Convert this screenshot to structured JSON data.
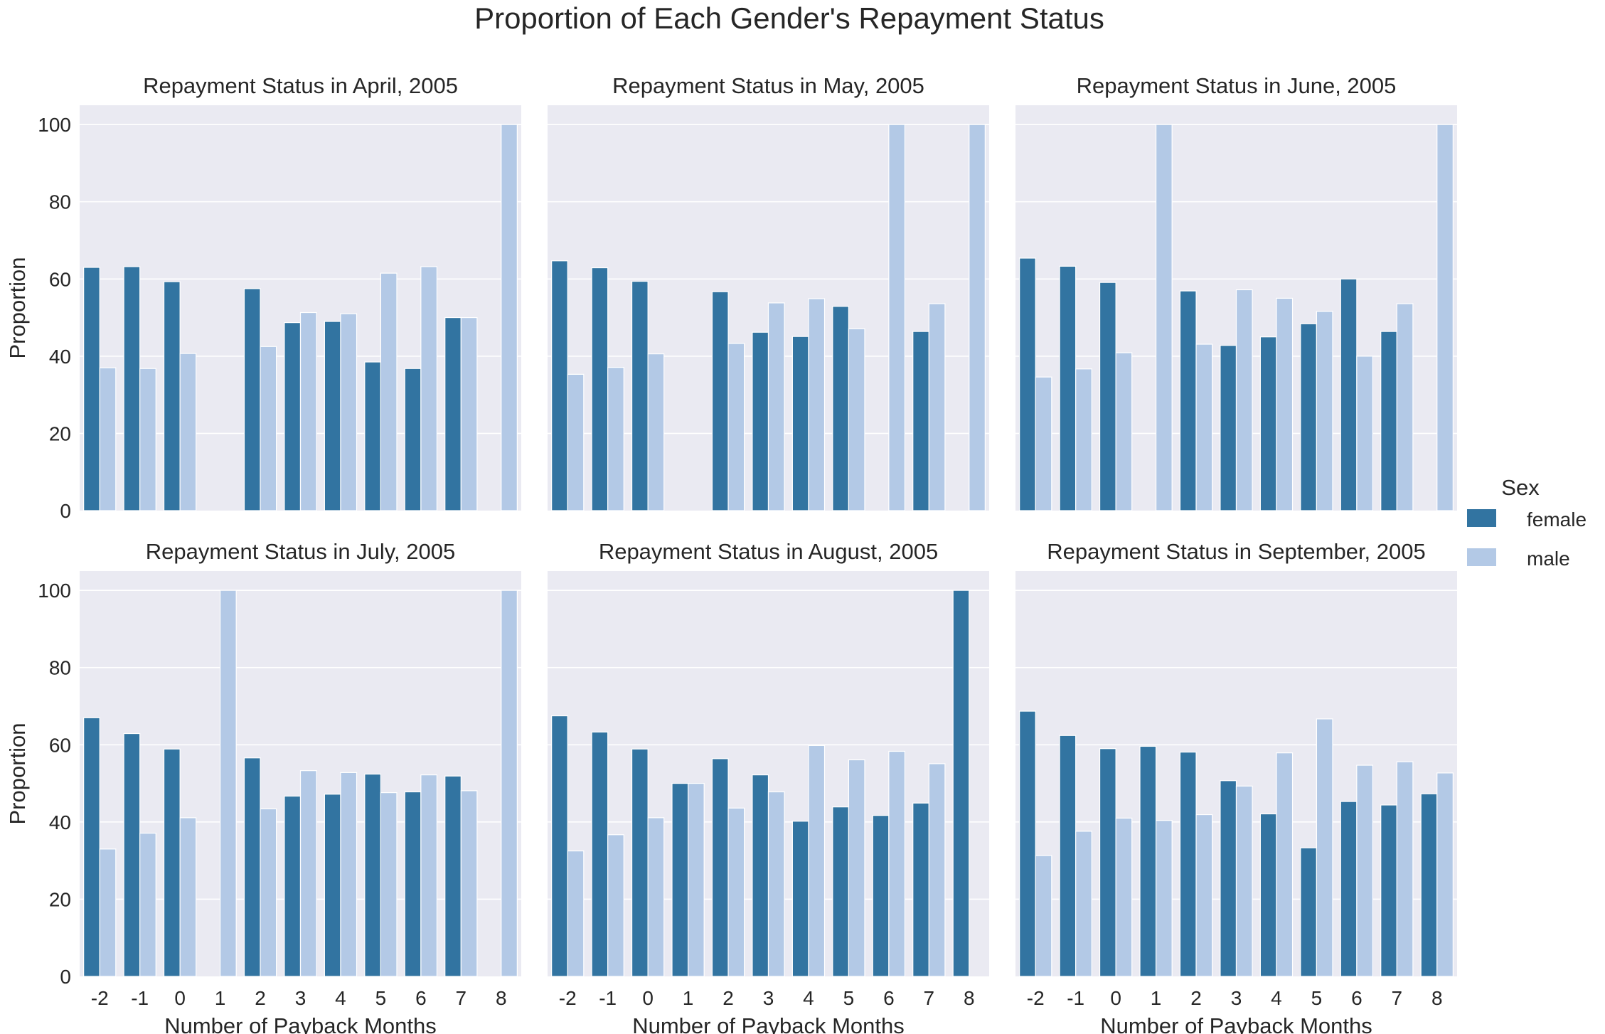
{
  "title": "Proportion of Each Gender's Repayment Status",
  "legend": {
    "title": "Sex",
    "placement": "right",
    "entries": [
      {
        "label": "female",
        "color": "#3274a1"
      },
      {
        "label": "male",
        "color": "#b3c9e6"
      }
    ]
  },
  "style": {
    "panel_background": "#eaeaf2",
    "grid_color": "#ffffff"
  },
  "chart_data": [
    {
      "type": "bar",
      "title": "Repayment Status in April, 2005",
      "xlabel": "",
      "ylabel": "Proportion",
      "ylim": [
        0,
        105
      ],
      "yticks": [
        0,
        20,
        40,
        60,
        80,
        100
      ],
      "grid": true,
      "categories": [
        "-2",
        "-1",
        "0",
        "1",
        "2",
        "3",
        "4",
        "5",
        "6",
        "7",
        "8"
      ],
      "series": [
        {
          "name": "female",
          "values": [
            63.0,
            63.2,
            59.3,
            null,
            57.5,
            48.7,
            49.0,
            38.5,
            36.8,
            50.0,
            null
          ]
        },
        {
          "name": "male",
          "values": [
            37.0,
            36.8,
            40.7,
            null,
            42.5,
            51.3,
            51.0,
            61.5,
            63.2,
            50.0,
            100.0
          ]
        }
      ]
    },
    {
      "type": "bar",
      "title": "Repayment Status in May, 2005",
      "xlabel": "",
      "ylabel": "",
      "ylim": [
        0,
        105
      ],
      "yticks": [
        0,
        20,
        40,
        60,
        80,
        100
      ],
      "grid": true,
      "categories": [
        "-2",
        "-1",
        "0",
        "1",
        "2",
        "3",
        "4",
        "5",
        "6",
        "7",
        "8"
      ],
      "series": [
        {
          "name": "female",
          "values": [
            64.7,
            62.9,
            59.4,
            null,
            56.7,
            46.2,
            45.1,
            52.9,
            null,
            46.4,
            null
          ]
        },
        {
          "name": "male",
          "values": [
            35.3,
            37.1,
            40.6,
            null,
            43.3,
            53.8,
            54.9,
            47.1,
            100.0,
            53.6,
            100.0
          ]
        }
      ]
    },
    {
      "type": "bar",
      "title": "Repayment Status in June, 2005",
      "xlabel": "",
      "ylabel": "",
      "ylim": [
        0,
        105
      ],
      "yticks": [
        0,
        20,
        40,
        60,
        80,
        100
      ],
      "grid": true,
      "categories": [
        "-2",
        "-1",
        "0",
        "1",
        "2",
        "3",
        "4",
        "5",
        "6",
        "7",
        "8"
      ],
      "series": [
        {
          "name": "female",
          "values": [
            65.4,
            63.3,
            59.1,
            null,
            56.9,
            42.8,
            45.0,
            48.4,
            60.0,
            46.4,
            null
          ]
        },
        {
          "name": "male",
          "values": [
            34.6,
            36.7,
            40.9,
            100.0,
            43.1,
            57.2,
            55.0,
            51.6,
            40.0,
            53.6,
            100.0
          ]
        }
      ]
    },
    {
      "type": "bar",
      "title": "Repayment Status in July, 2005",
      "xlabel": "Number of Payback Months",
      "ylabel": "Proportion",
      "ylim": [
        0,
        105
      ],
      "yticks": [
        0,
        20,
        40,
        60,
        80,
        100
      ],
      "grid": true,
      "categories": [
        "-2",
        "-1",
        "0",
        "1",
        "2",
        "3",
        "4",
        "5",
        "6",
        "7",
        "8"
      ],
      "series": [
        {
          "name": "female",
          "values": [
            67.0,
            62.9,
            58.9,
            null,
            56.6,
            46.7,
            47.2,
            52.4,
            47.8,
            51.9,
            null
          ]
        },
        {
          "name": "male",
          "values": [
            33.0,
            37.1,
            41.1,
            100.0,
            43.4,
            53.3,
            52.8,
            47.6,
            52.2,
            48.1,
            100.0
          ]
        }
      ]
    },
    {
      "type": "bar",
      "title": "Repayment Status in August, 2005",
      "xlabel": "Number of Payback Months",
      "ylabel": "",
      "ylim": [
        0,
        105
      ],
      "yticks": [
        0,
        20,
        40,
        60,
        80,
        100
      ],
      "grid": true,
      "categories": [
        "-2",
        "-1",
        "0",
        "1",
        "2",
        "3",
        "4",
        "5",
        "6",
        "7",
        "8"
      ],
      "series": [
        {
          "name": "female",
          "values": [
            67.5,
            63.3,
            58.9,
            50.0,
            56.4,
            52.2,
            40.2,
            43.9,
            41.7,
            44.9,
            100.0
          ]
        },
        {
          "name": "male",
          "values": [
            32.5,
            36.7,
            41.1,
            50.0,
            43.6,
            47.8,
            59.8,
            56.1,
            58.3,
            55.1,
            null
          ]
        }
      ]
    },
    {
      "type": "bar",
      "title": "Repayment Status in September, 2005",
      "xlabel": "Number of Payback Months",
      "ylabel": "",
      "ylim": [
        0,
        105
      ],
      "yticks": [
        0,
        20,
        40,
        60,
        80,
        100
      ],
      "grid": true,
      "categories": [
        "-2",
        "-1",
        "0",
        "1",
        "2",
        "3",
        "4",
        "5",
        "6",
        "7",
        "8"
      ],
      "series": [
        {
          "name": "female",
          "values": [
            68.7,
            62.4,
            59.0,
            59.6,
            58.1,
            50.7,
            42.1,
            33.3,
            45.3,
            44.4,
            47.3
          ]
        },
        {
          "name": "male",
          "values": [
            31.3,
            37.6,
            41.0,
            40.4,
            41.9,
            49.3,
            57.9,
            66.7,
            54.7,
            55.6,
            52.7
          ]
        }
      ]
    }
  ]
}
